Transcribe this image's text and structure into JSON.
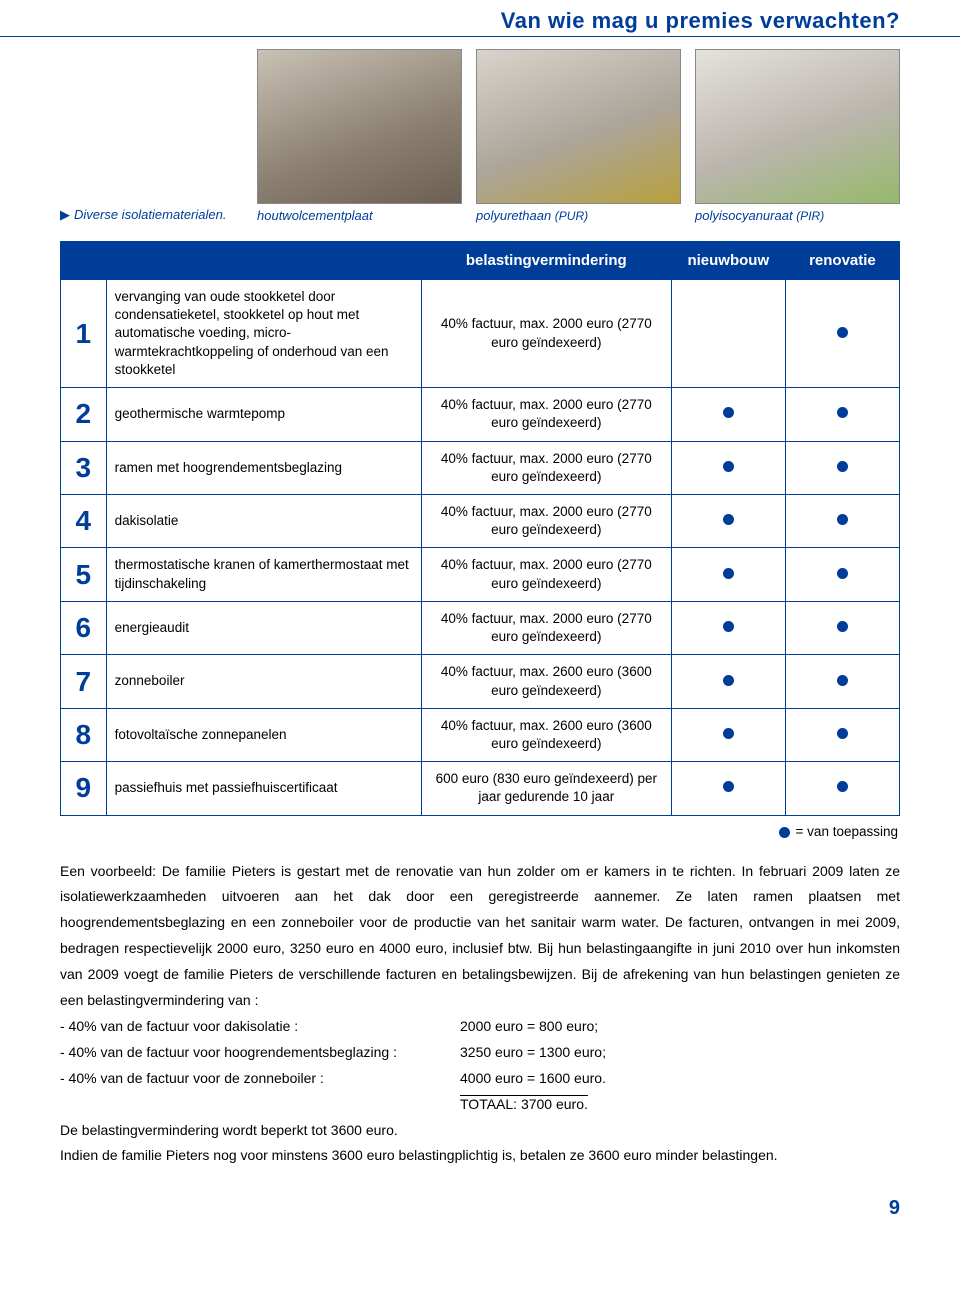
{
  "title": "Van wie mag u premies verwachten?",
  "captions": {
    "intro": "Diverse isolatiematerialen.",
    "img1": "houtwolcementplaat",
    "img2_main": "polyurethaan",
    "img2_sub": "(PUR)",
    "img3_main": "polyisocyanuraat",
    "img3_sub": "(PIR)"
  },
  "table": {
    "headers": {
      "tax": "belastingvermindering",
      "nieuwbouw": "nieuwbouw",
      "renovatie": "renovatie"
    },
    "rows": [
      {
        "n": "1",
        "desc": "vervanging van oude stookketel door condensatieketel, stookketel op hout met automatische voeding, micro-warmtekrachtkoppeling of onderhoud van een stookketel",
        "tax": "40% factuur, max. 2000 euro (2770 euro geïndexeerd)",
        "nb": false,
        "ren": true
      },
      {
        "n": "2",
        "desc": "geothermische warmtepomp",
        "tax": "40% factuur, max. 2000 euro (2770 euro geïndexeerd)",
        "nb": true,
        "ren": true
      },
      {
        "n": "3",
        "desc": "ramen met hoogrendementsbeglazing",
        "tax": "40% factuur, max. 2000 euro (2770 euro geïndexeerd)",
        "nb": true,
        "ren": true
      },
      {
        "n": "4",
        "desc": "dakisolatie",
        "tax": "40% factuur, max. 2000 euro (2770 euro geïndexeerd)",
        "nb": true,
        "ren": true
      },
      {
        "n": "5",
        "desc": "thermostatische kranen of kamerthermostaat met tijdinschakeling",
        "tax": "40% factuur, max. 2000 euro (2770 euro geïndexeerd)",
        "nb": true,
        "ren": true
      },
      {
        "n": "6",
        "desc": "energieaudit",
        "tax": "40% factuur, max. 2000 euro (2770 euro geïndexeerd)",
        "nb": true,
        "ren": true
      },
      {
        "n": "7",
        "desc": "zonneboiler",
        "tax": "40% factuur, max. 2600 euro (3600 euro geïndexeerd)",
        "nb": true,
        "ren": true
      },
      {
        "n": "8",
        "desc": "fotovoltaïsche zonnepanelen",
        "tax": "40% factuur, max. 2600 euro (3600 euro geïndexeerd)",
        "nb": true,
        "ren": true
      },
      {
        "n": "9",
        "desc": "passiefhuis met passiefhuiscertificaat",
        "tax": "600 euro (830 euro geïndexeerd) per jaar gedurende 10 jaar",
        "nb": true,
        "ren": true
      }
    ]
  },
  "legend": "= van toepassing",
  "example": {
    "p1": "Een voorbeeld: De familie Pieters is gestart met de renovatie van hun zolder om er kamers in te richten. In februari 2009 laten ze isolatiewerkzaamheden uitvoeren aan het dak door een geregistreerde aannemer. Ze laten ramen plaatsen met hoogrendementsbeglazing en een zonneboiler voor de productie van het sanitair warm water. De facturen, ontvangen in mei 2009, bedragen respectievelijk 2000 euro, 3250 euro en 4000 euro, inclusief btw. Bij hun belastingaangifte in juni 2010 over hun inkomsten van 2009 voegt de familie Pieters de verschillende facturen en betalingsbewijzen. Bij de afrekening van hun belastingen genieten ze een belastingvermindering van :",
    "calc": [
      {
        "label": "- 40% van de factuur voor dakisolatie :",
        "val": "2000 euro =   800 euro;"
      },
      {
        "label": "- 40% van de factuur voor hoogrendementsbeglazing :",
        "val": "3250 euro = 1300 euro;"
      },
      {
        "label": "- 40% van de factuur voor de zonneboiler :",
        "val": "4000 euro = 1600 euro."
      }
    ],
    "total": "TOTAAL: 3700 euro.",
    "p2": "De belastingvermindering wordt beperkt tot 3600 euro.",
    "p3": "Indien de familie Pieters nog voor minstens 3600 euro belastingplichtig is, betalen ze 3600 euro minder belastingen."
  },
  "pagenum": "9",
  "colors": {
    "brand": "#003d99"
  }
}
